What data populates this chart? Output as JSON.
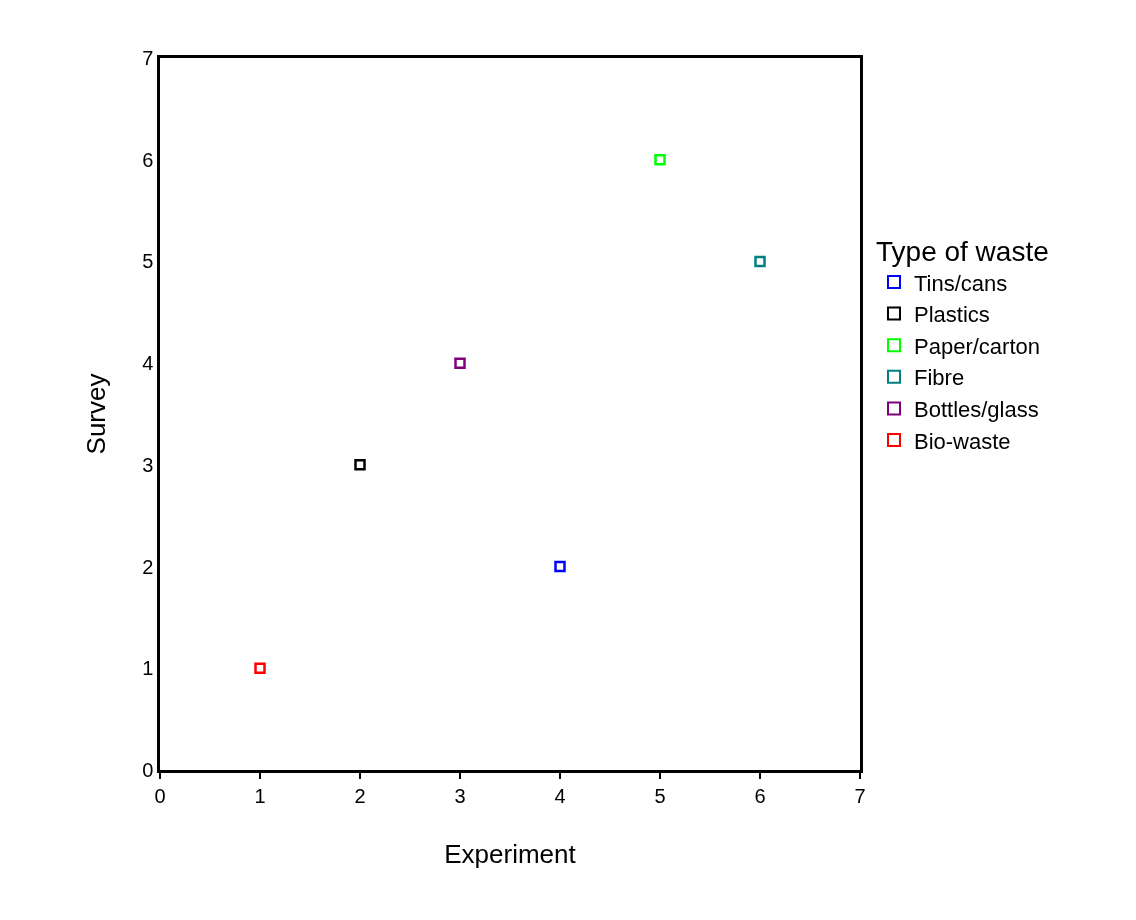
{
  "chart_data": {
    "type": "scatter",
    "xlabel": "Experiment",
    "ylabel": "Survey",
    "legend_title": "Type of waste",
    "series": [
      {
        "name": "Tins/cans",
        "color": "#0000ff",
        "x": [
          4
        ],
        "values": [
          2
        ]
      },
      {
        "name": "Plastics",
        "color": "#000000",
        "x": [
          2
        ],
        "values": [
          3
        ]
      },
      {
        "name": "Paper/carton",
        "color": "#00ff00",
        "x": [
          5
        ],
        "values": [
          6
        ]
      },
      {
        "name": "Fibre",
        "color": "#008080",
        "x": [
          6
        ],
        "values": [
          5
        ]
      },
      {
        "name": "Bottles/glass",
        "color": "#800080",
        "x": [
          3
        ],
        "values": [
          4
        ]
      },
      {
        "name": "Bio-waste",
        "color": "#ff0000",
        "x": [
          1
        ],
        "values": [
          1
        ]
      }
    ],
    "xlim": [
      0,
      7
    ],
    "xticks": [
      0,
      1,
      2,
      3,
      4,
      5,
      6,
      7
    ],
    "ylim": [
      0,
      7
    ],
    "yticks": [
      0,
      1,
      2,
      3,
      4,
      5,
      6,
      7
    ],
    "grid": false,
    "legend": "right",
    "marker": "square"
  }
}
